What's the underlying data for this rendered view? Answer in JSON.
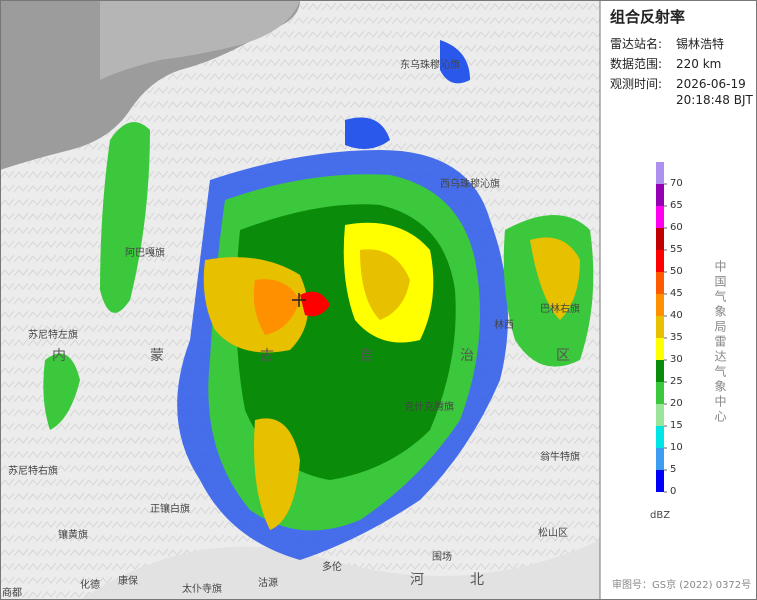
{
  "panel": {
    "title": "组合反射率",
    "fields": [
      {
        "label": "雷达站名:",
        "value": "锡林浩特"
      },
      {
        "label": "数据范围:",
        "value": "220 km"
      },
      {
        "label": "观测时间:",
        "value": "2026-06-19"
      }
    ],
    "time_line2": "20:18:48 BJT"
  },
  "legend": {
    "unit": "dBZ",
    "ticks": [
      0,
      5,
      10,
      15,
      20,
      25,
      30,
      35,
      40,
      45,
      50,
      55,
      60,
      65,
      70
    ],
    "colors": [
      "#0000f6",
      "#3c9df2",
      "#00e6e6",
      "#9be59b",
      "#3cc83c",
      "#0a8c0a",
      "#ffff00",
      "#e7c000",
      "#ff9000",
      "#ff5a00",
      "#ff0000",
      "#c00000",
      "#ff00f0",
      "#9600b4",
      "#ad90f0"
    ]
  },
  "credit": "中国气象局雷达气象中心",
  "approval": "审图号：GS京 (2022) 0372号",
  "map_labels": [
    "东乌珠穆沁旗",
    "阿巴嘎旗",
    "苏尼特左旗",
    "内",
    "蒙",
    "古",
    "自",
    "治",
    "区",
    "西乌珠穆沁旗",
    "巴林右旗",
    "林西",
    "克什克腾旗",
    "翁牛特旗",
    "苏尼特右旗",
    "正镶白旗",
    "镶黄旗",
    "太仆寺旗",
    "多伦",
    "围场",
    "松山区",
    "化德",
    "康保",
    "沽源",
    "河",
    "北",
    "商都"
  ]
}
